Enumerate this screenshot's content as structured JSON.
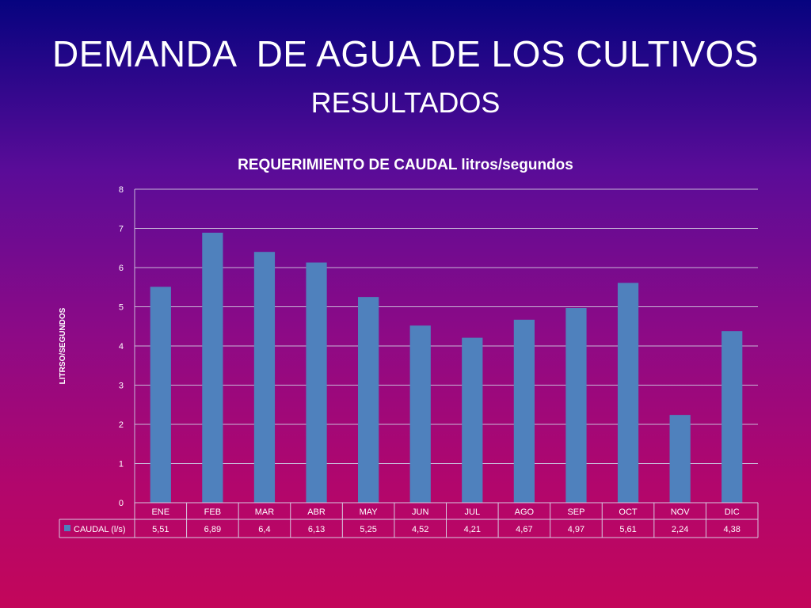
{
  "slide": {
    "title": "DEMANDA  DE AGUA DE LOS CULTIVOS",
    "subtitle": "RESULTADOS"
  },
  "chart_data": {
    "type": "bar",
    "title": "REQUERIMIENTO DE CAUDAL  litros/segundos",
    "ylabel": "LITRSO/SEGUNDOS",
    "xlabel": "",
    "ylim": [
      0,
      8
    ],
    "yticks": [
      0,
      1,
      2,
      3,
      4,
      5,
      6,
      7,
      8
    ],
    "grid": true,
    "legend": "data-table-left",
    "bar_color": "#4f81bd",
    "categories": [
      "ENE",
      "FEB",
      "MAR",
      "ABR",
      "MAY",
      "JUN",
      "JUL",
      "AGO",
      "SEP",
      "OCT",
      "NOV",
      "DIC"
    ],
    "series": [
      {
        "name": "CAUDAL (l/s)",
        "values": [
          5.51,
          6.89,
          6.4,
          6.13,
          5.25,
          4.52,
          4.21,
          4.67,
          4.97,
          5.61,
          2.24,
          4.38
        ],
        "labels": [
          "5,51",
          "6,89",
          "6,4",
          "6,13",
          "5,25",
          "4,52",
          "4,21",
          "4,67",
          "4,97",
          "5,61",
          "2,24",
          "4,38"
        ]
      }
    ]
  }
}
